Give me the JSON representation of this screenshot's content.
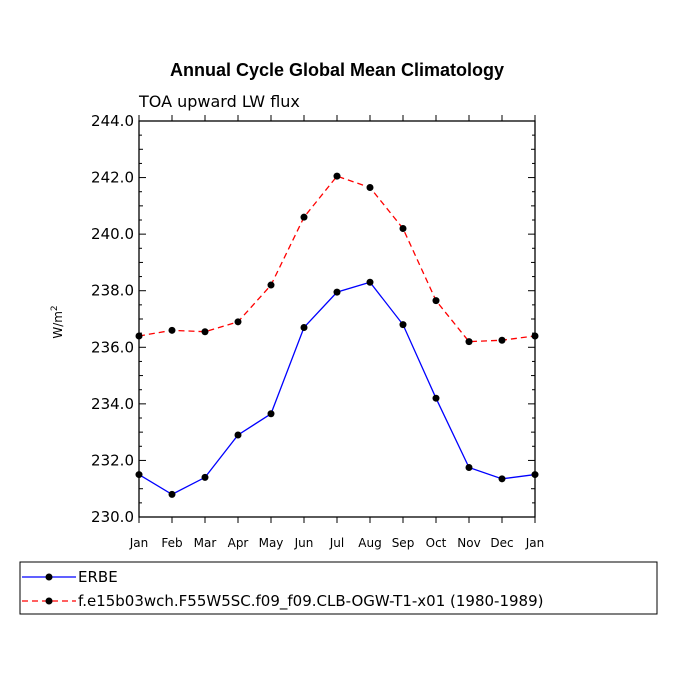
{
  "chart_data": {
    "type": "line",
    "title": "Annual Cycle Global Mean Climatology",
    "subtitle": "TOA upward LW flux",
    "xlabel": "",
    "ylabel": "W/m",
    "ylabel_superscript": "2",
    "ylim": [
      230.0,
      244.0
    ],
    "yticks": [
      "230.0",
      "232.0",
      "234.0",
      "236.0",
      "238.0",
      "240.0",
      "242.0",
      "244.0"
    ],
    "categories": [
      "Jan",
      "Feb",
      "Mar",
      "Apr",
      "May",
      "Jun",
      "Jul",
      "Aug",
      "Sep",
      "Oct",
      "Nov",
      "Dec",
      "Jan"
    ],
    "legend_position": "bottom",
    "series": [
      {
        "name": "ERBE",
        "color": "#0000ff",
        "dash": "solid",
        "values": [
          231.5,
          230.8,
          231.4,
          232.9,
          233.65,
          236.7,
          237.95,
          238.3,
          236.8,
          234.2,
          231.75,
          231.35,
          231.5
        ]
      },
      {
        "name": "f.e15b03wch.F55W5SC.f09_f09.CLB-OGW-T1-x01 (1980-1989)",
        "color": "#ff0000",
        "dash": "dashed",
        "values": [
          236.4,
          236.6,
          236.55,
          236.9,
          238.2,
          240.6,
          242.05,
          241.65,
          240.2,
          237.65,
          236.2,
          236.25,
          236.4
        ]
      }
    ]
  }
}
